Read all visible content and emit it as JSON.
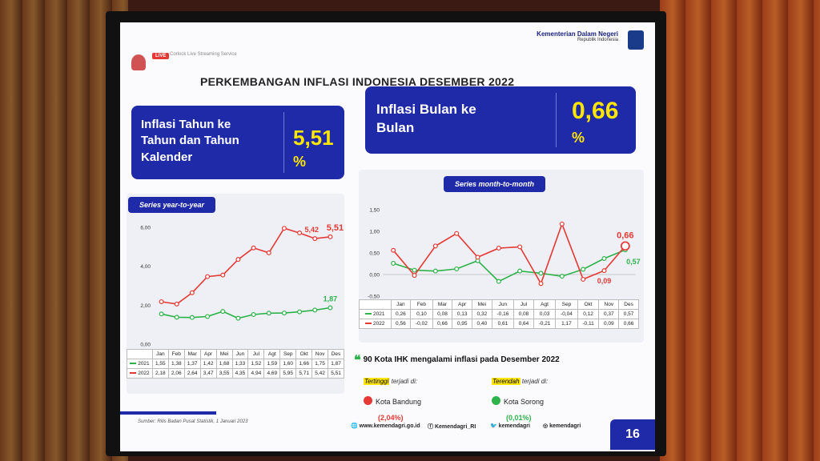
{
  "header": {
    "live_badge": "LIVE",
    "live_text": "Corlock Live Streaming Service",
    "ministry": "Kementerian Dalam Negeri",
    "republic": "Republik Indonesia"
  },
  "title": "PERKEMBANGAN INFLASI INDONESIA DESEMBER 2022",
  "kpi_yoy": {
    "label_lines": [
      "Inflasi Tahun ke",
      "Tahun  dan Tahun",
      "Kalender"
    ],
    "value": "5,51",
    "unit": "%"
  },
  "kpi_mtm": {
    "label_lines": [
      "Inflasi Bulan ke",
      "Bulan"
    ],
    "value": "0,66",
    "unit": "%"
  },
  "chart_data": [
    {
      "type": "line",
      "title": "Series year-to-year",
      "categories": [
        "Jan",
        "Feb",
        "Mar",
        "Apr",
        "Mei",
        "Jun",
        "Jul",
        "Agt",
        "Sep",
        "Okt",
        "Nov",
        "Des"
      ],
      "ylim": [
        0,
        6
      ],
      "yticks": [
        "0,00",
        "2,00",
        "4,00",
        "6,00"
      ],
      "series": [
        {
          "name": "2021",
          "color": "#2db34a",
          "values": [
            1.55,
            1.38,
            1.37,
            1.42,
            1.68,
            1.33,
            1.52,
            1.59,
            1.6,
            1.66,
            1.75,
            1.87
          ],
          "labels": [
            "1,55",
            "1,38",
            "1,37",
            "1,42",
            "1,68",
            "1,33",
            "1,52",
            "1,59",
            "1,60",
            "1,66",
            "1,75",
            "1,87"
          ]
        },
        {
          "name": "2022",
          "color": "#e53935",
          "values": [
            2.18,
            2.06,
            2.64,
            3.47,
            3.55,
            4.35,
            4.94,
            4.69,
            5.95,
            5.71,
            5.42,
            5.51
          ],
          "labels": [
            "2,18",
            "2,06",
            "2,64",
            "3,47",
            "3,55",
            "4,35",
            "4,94",
            "4,69",
            "5,95",
            "5,71",
            "5,42",
            "5,51"
          ]
        }
      ],
      "annotations": [
        {
          "text": "5,42"
        },
        {
          "text": "5,51"
        },
        {
          "text": "1,87"
        }
      ]
    },
    {
      "type": "line",
      "title": "Series month-to-month",
      "categories": [
        "Jan",
        "Feb",
        "Mar",
        "Apr",
        "Mei",
        "Jun",
        "Jul",
        "Agt",
        "Sep",
        "Okt",
        "Nov",
        "Des"
      ],
      "ylim": [
        -0.5,
        1.5
      ],
      "yticks": [
        "-0,50",
        "0,00",
        "0,50",
        "1,00",
        "1,50"
      ],
      "series": [
        {
          "name": "2021",
          "color": "#2db34a",
          "values": [
            0.26,
            0.1,
            0.08,
            0.13,
            0.32,
            -0.16,
            0.08,
            0.03,
            -0.04,
            0.12,
            0.37,
            0.57
          ],
          "labels": [
            "0,26",
            "0,10",
            "0,08",
            "0,13",
            "0,32",
            "-0,16",
            "0,08",
            "0,03",
            "-0,04",
            "0,12",
            "0,37",
            "0,57"
          ]
        },
        {
          "name": "2022",
          "color": "#e53935",
          "values": [
            0.56,
            -0.02,
            0.66,
            0.95,
            0.4,
            0.61,
            0.64,
            -0.21,
            1.17,
            -0.11,
            0.09,
            0.66
          ],
          "labels": [
            "0,56",
            "-0,02",
            "0,66",
            "0,95",
            "0,40",
            "0,61",
            "0,64",
            "-0,21",
            "1,17",
            "-0,11",
            "0,09",
            "0,66"
          ]
        }
      ],
      "annotations": [
        {
          "text": "0,66"
        },
        {
          "text": "0,57"
        },
        {
          "text": "0,09"
        }
      ]
    }
  ],
  "info": {
    "headline": "90 Kota IHK mengalami inflasi pada Desember 2022",
    "highest_tag": "Tertinggi",
    "highest_rest": " terjadi di:",
    "highest_city": "Kota Bandung",
    "highest_pct": "(2,04%)",
    "lowest_tag": "Terendah",
    "lowest_rest": " terjadi di:",
    "lowest_city": "Kota Sorong",
    "lowest_pct": "(0,01%)"
  },
  "footer": {
    "source": "Sumber: Rilis Badan Pusat Statistik, 1 Januari 2023",
    "website": "www.kemendagri.go.id",
    "facebook": "Kemendagri_RI",
    "twitter": "kemendagri",
    "instagram": "kemendagri",
    "page": "16"
  }
}
